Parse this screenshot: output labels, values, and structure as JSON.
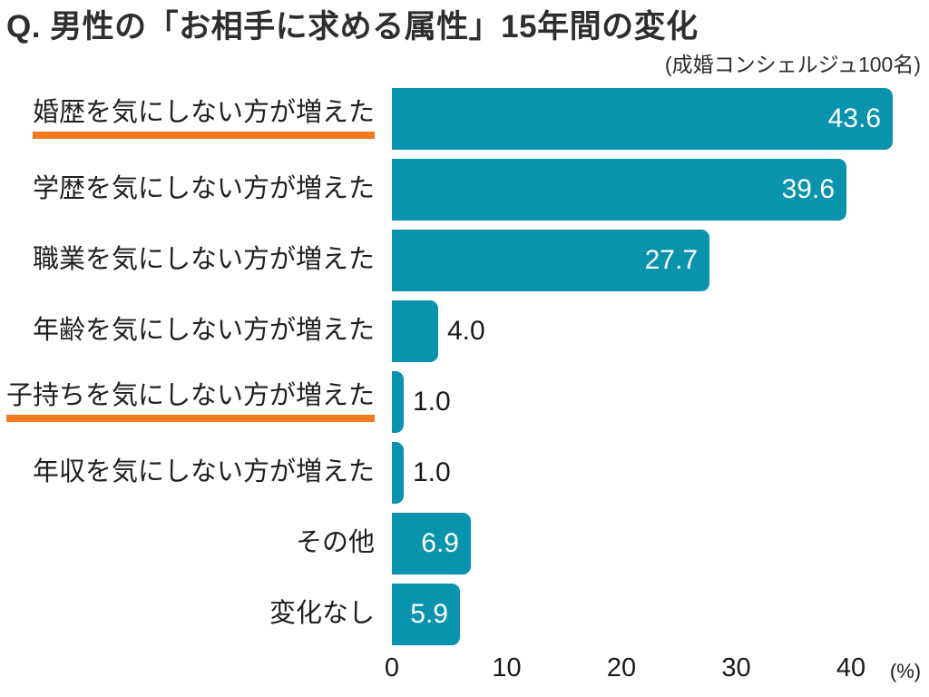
{
  "header": {
    "title": "Q. 男性の「お相手に求める属性」15年間の変化",
    "subtitle": "(成婚コンシェルジュ100名)"
  },
  "chart_data": {
    "type": "bar",
    "orientation": "horizontal",
    "title": "Q. 男性の「お相手に求める属性」15年間の変化",
    "subtitle": "(成婚コンシェルジュ100名)",
    "categories": [
      "婚歴を気にしない方が増えた",
      "学歴を気にしない方が増えた",
      "職業を気にしない方が増えた",
      "年齢を気にしない方が増えた",
      "子持ちを気にしない方が増えた",
      "年収を気にしない方が増えた",
      "その他",
      "変化なし"
    ],
    "values": [
      43.6,
      39.6,
      27.7,
      4.0,
      1.0,
      1.0,
      6.9,
      5.9
    ],
    "underlined_categories": [
      0,
      4
    ],
    "xticks": [
      0,
      10,
      20,
      30,
      40
    ],
    "xlabel": "(%)",
    "xlim": [
      0,
      46
    ],
    "grid": false,
    "legend": false,
    "colors": {
      "bar": "#0A93AD",
      "underline": "#F4791F",
      "value_inside": "#FFFFFF",
      "value_outside": "#1A1A1A",
      "text": "#2E2E2E"
    }
  }
}
